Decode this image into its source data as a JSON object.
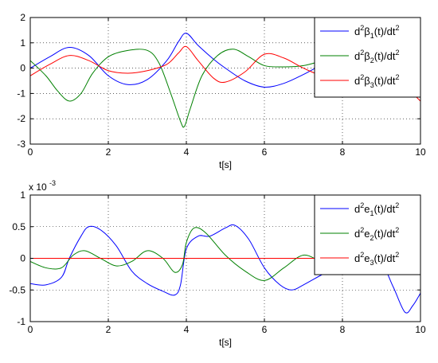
{
  "chart_data": [
    {
      "type": "line",
      "xlabel": "t[s]",
      "ylabel": "",
      "xlim": [
        0,
        10
      ],
      "ylim": [
        -3,
        2
      ],
      "xticks": [
        0,
        2,
        4,
        6,
        8,
        10
      ],
      "yticks": [
        -3,
        -2,
        -1,
        0,
        1,
        2
      ],
      "x_tick_labels": [
        "0",
        "2",
        "4",
        "6",
        "8",
        "10"
      ],
      "y_tick_labels": [
        "-3",
        "-2",
        "-1",
        "0",
        "1",
        "2"
      ],
      "exponent_label": "",
      "grid": "dotted",
      "legend_position": "top-right",
      "series": [
        {
          "name": "d2β1(t)/dt2",
          "legend": {
            "pre": "d",
            "sup1": "2",
            "mid": "β",
            "sub": "1",
            "post": "(t)/dt",
            "sup2": "2"
          },
          "color": "#0000ff",
          "x": [
            0,
            0.5,
            1.0,
            1.5,
            2.0,
            2.5,
            3.0,
            3.5,
            3.8,
            4.0,
            4.3,
            4.7,
            5.0,
            5.5,
            6.0,
            6.5,
            7.0,
            7.5,
            8.0,
            8.5,
            9.0,
            9.5,
            10.0
          ],
          "y": [
            0.0,
            0.45,
            0.82,
            0.5,
            -0.3,
            -0.65,
            -0.45,
            0.3,
            1.05,
            1.38,
            0.9,
            0.35,
            0.0,
            -0.5,
            -0.75,
            -0.6,
            -0.25,
            0.15,
            0.4,
            0.5,
            0.45,
            0.1,
            0.55
          ]
        },
        {
          "name": "d2β2(t)/dt2",
          "legend": {
            "pre": "d",
            "sup1": "2",
            "mid": "β",
            "sub": "2",
            "post": "(t)/dt",
            "sup2": "2"
          },
          "color": "#008000",
          "x": [
            0,
            0.4,
            0.7,
            1.0,
            1.3,
            1.6,
            2.0,
            2.5,
            3.0,
            3.3,
            3.6,
            3.85,
            3.95,
            4.1,
            4.4,
            4.8,
            5.2,
            5.6,
            6.0,
            6.5,
            7.0,
            7.5,
            8.0,
            8.5,
            9.0,
            9.5,
            10.0
          ],
          "y": [
            0.3,
            -0.3,
            -0.9,
            -1.3,
            -1.0,
            -0.2,
            0.45,
            0.7,
            0.7,
            0.2,
            -1.0,
            -2.1,
            -2.3,
            -1.6,
            -0.3,
            0.5,
            0.75,
            0.45,
            0.1,
            0.05,
            0.1,
            0.3,
            0.5,
            0.55,
            0.5,
            0.3,
            0.75
          ]
        },
        {
          "name": "d2β3(t)/dt2",
          "legend": {
            "pre": "d",
            "sup1": "2",
            "mid": "β",
            "sub": "3",
            "post": "(t)/dt",
            "sup2": "2"
          },
          "color": "#ff0000",
          "x": [
            0,
            0.5,
            1.0,
            1.5,
            2.0,
            2.5,
            3.0,
            3.5,
            3.8,
            4.0,
            4.3,
            4.7,
            5.0,
            5.5,
            6.0,
            6.5,
            7.0,
            7.5,
            8.0,
            8.5,
            9.0,
            9.5,
            10.0
          ],
          "y": [
            -0.3,
            0.15,
            0.5,
            0.3,
            -0.1,
            -0.2,
            -0.1,
            0.15,
            0.6,
            0.85,
            0.3,
            -0.4,
            -0.55,
            -0.15,
            0.55,
            0.4,
            0.0,
            -0.3,
            -0.3,
            -0.1,
            -0.3,
            -0.6,
            -1.3
          ]
        }
      ]
    },
    {
      "type": "line",
      "xlabel": "t[s]",
      "ylabel": "",
      "xlim": [
        0,
        10
      ],
      "ylim": [
        -1,
        1
      ],
      "xticks": [
        0,
        2,
        4,
        6,
        8,
        10
      ],
      "yticks": [
        -1,
        -0.5,
        0,
        0.5,
        1
      ],
      "x_tick_labels": [
        "0",
        "2",
        "4",
        "6",
        "8",
        "10"
      ],
      "y_tick_labels": [
        "-1",
        "-0.5",
        "0",
        "0.5",
        "1"
      ],
      "exponent_label": {
        "base": "x 10",
        "exp": "-3"
      },
      "grid": "dotted",
      "legend_position": "top-right",
      "series": [
        {
          "name": "d2e1(t)/dt2",
          "legend": {
            "pre": "d",
            "sup1": "2",
            "mid": "e",
            "sub": "1",
            "post": "(t)/dt",
            "sup2": "2"
          },
          "color": "#0000ff",
          "x": [
            0,
            0.4,
            0.8,
            1.0,
            1.3,
            1.5,
            1.8,
            2.2,
            2.6,
            3.0,
            3.4,
            3.7,
            3.85,
            4.0,
            4.3,
            4.6,
            5.0,
            5.25,
            5.6,
            6.0,
            6.4,
            6.7,
            7.0,
            7.5,
            8.0,
            8.5,
            9.0,
            9.3,
            9.6,
            9.8,
            10.0
          ],
          "y": [
            -0.4,
            -0.42,
            -0.3,
            0.0,
            0.35,
            0.5,
            0.45,
            0.2,
            -0.2,
            -0.4,
            -0.52,
            -0.58,
            -0.42,
            0.15,
            0.35,
            0.35,
            0.48,
            0.52,
            0.3,
            -0.15,
            -0.42,
            -0.5,
            -0.42,
            -0.25,
            -0.1,
            -0.05,
            -0.1,
            -0.45,
            -0.85,
            -0.75,
            -0.55
          ]
        },
        {
          "name": "d2e2(t)/dt2",
          "legend": {
            "pre": "d",
            "sup1": "2",
            "mid": "e",
            "sub": "2",
            "post": "(t)/dt",
            "sup2": "2"
          },
          "color": "#008000",
          "x": [
            0,
            0.4,
            0.8,
            1.1,
            1.4,
            1.8,
            2.2,
            2.6,
            3.0,
            3.4,
            3.7,
            3.9,
            4.0,
            4.2,
            4.5,
            5.0,
            5.5,
            6.0,
            6.5,
            7.0,
            7.5,
            8.0,
            8.5,
            9.0,
            9.5,
            9.8,
            10.0
          ],
          "y": [
            -0.05,
            -0.15,
            -0.15,
            0.05,
            0.12,
            0.0,
            -0.12,
            -0.05,
            0.12,
            0.0,
            -0.22,
            -0.1,
            0.25,
            0.48,
            0.4,
            0.05,
            -0.2,
            -0.35,
            -0.15,
            0.05,
            -0.05,
            0.02,
            0.15,
            0.08,
            0.05,
            0.05,
            -0.25
          ]
        },
        {
          "name": "d2e3(t)/dt2",
          "legend": {
            "pre": "d",
            "sup1": "2",
            "mid": "e",
            "sub": "3",
            "post": "(t)/dt",
            "sup2": "2"
          },
          "color": "#ff0000",
          "x": [
            0,
            10
          ],
          "y": [
            0,
            0
          ]
        }
      ]
    }
  ]
}
